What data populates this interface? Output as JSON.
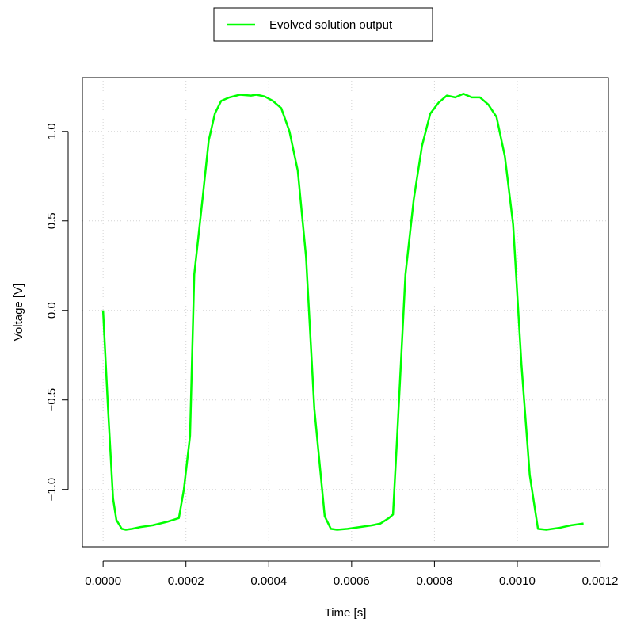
{
  "chart_data": {
    "type": "line",
    "xlabel": "Time [s]",
    "ylabel": "Voltage [V]",
    "xlim": [
      -5e-05,
      0.00122
    ],
    "ylim": [
      -1.32,
      1.3
    ],
    "xticks": [
      0,
      0.0002,
      0.0004,
      0.0006,
      0.0008,
      0.001,
      0.0012
    ],
    "xtick_labels": [
      "0.0000",
      "0.0002",
      "0.0004",
      "0.0006",
      "0.0008",
      "0.0010",
      "0.0012"
    ],
    "yticks": [
      -1.0,
      -0.5,
      0.0,
      0.5,
      1.0
    ],
    "ytick_labels": [
      "−1.0",
      "−0.5",
      "0.0",
      "0.5",
      "1.0"
    ],
    "grid": true,
    "legend_position": "top-center",
    "series": [
      {
        "name": "Evolved solution output",
        "color": "#00ff00",
        "x": [
          0,
          1.2e-05,
          2.4e-05,
          3.2e-05,
          4.5e-05,
          5.5e-05,
          7e-05,
          9e-05,
          0.00012,
          0.000155,
          0.000183,
          0.000195,
          0.00021,
          0.00022,
          0.00024,
          0.000255,
          0.00027,
          0.000285,
          0.000305,
          0.00033,
          0.000357,
          0.00037,
          0.00039,
          0.00041,
          0.00043,
          0.00045,
          0.00047,
          0.00049,
          0.00051,
          0.000535,
          0.00055,
          0.000565,
          0.00059,
          0.00062,
          0.00065,
          0.00067,
          0.00069,
          0.0007,
          0.00071,
          0.00073,
          0.00075,
          0.00077,
          0.00079,
          0.00081,
          0.00083,
          0.00085,
          0.00087,
          0.00089,
          0.00091,
          0.00093,
          0.00095,
          0.00097,
          0.00099,
          0.00101,
          0.00103,
          0.00105,
          0.00107,
          0.0011,
          0.00113,
          0.00116
        ],
        "y": [
          0.0,
          -0.55,
          -1.05,
          -1.17,
          -1.22,
          -1.225,
          -1.22,
          -1.21,
          -1.2,
          -1.18,
          -1.16,
          -1.0,
          -0.7,
          0.2,
          0.62,
          0.95,
          1.1,
          1.17,
          1.19,
          1.205,
          1.2,
          1.205,
          1.195,
          1.17,
          1.13,
          1.0,
          0.78,
          0.3,
          -0.55,
          -1.15,
          -1.22,
          -1.225,
          -1.22,
          -1.21,
          -1.2,
          -1.19,
          -1.16,
          -1.14,
          -0.7,
          0.2,
          0.62,
          0.92,
          1.1,
          1.16,
          1.2,
          1.19,
          1.21,
          1.19,
          1.19,
          1.15,
          1.08,
          0.86,
          0.48,
          -0.3,
          -0.92,
          -1.22,
          -1.225,
          -1.215,
          -1.2,
          -1.19
        ]
      }
    ]
  }
}
